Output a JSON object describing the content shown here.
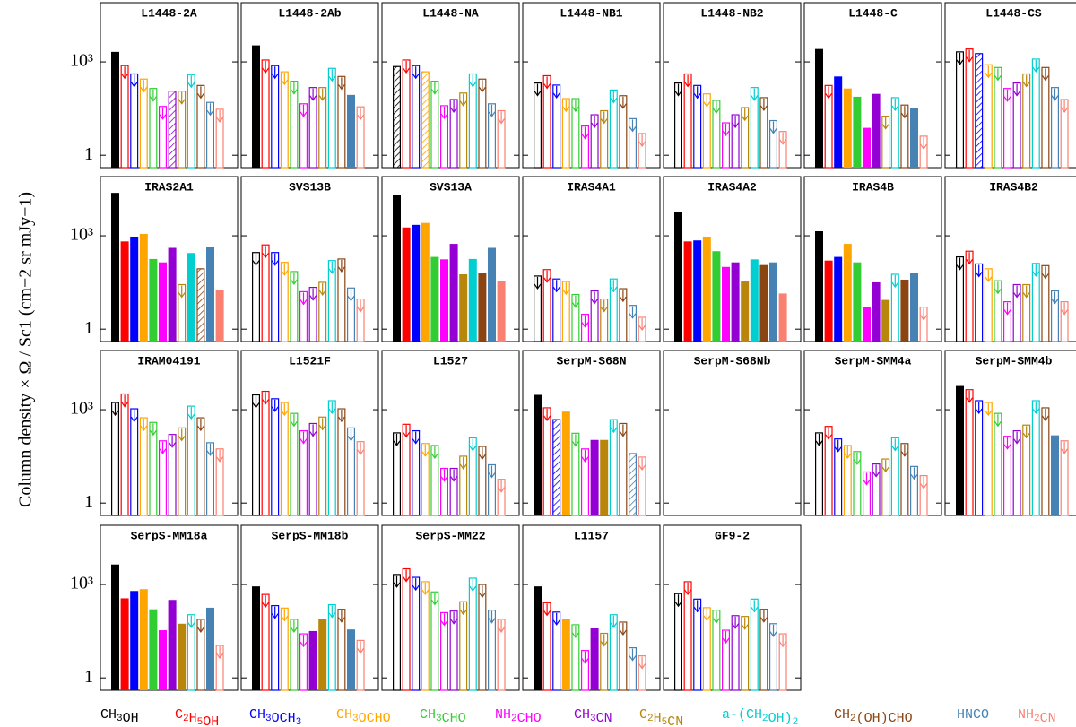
{
  "chart_data": {
    "type": "bar_grid",
    "ylabel": "Column density × Ω / Sc1 (cm−2 sr mJy−1)",
    "log_scale": true,
    "ylim": [
      0.4,
      80000
    ],
    "yticks": [
      1,
      {
        "value": 1000,
        "label": "10³"
      }
    ],
    "categories": [
      "CH3OH",
      "C2H5OH",
      "CH3OCH3",
      "CH3OCHO",
      "CH3CHO",
      "NH2CHO",
      "CH3CN",
      "C2H5CN",
      "a-(CH2OH)2",
      "CH2(OH)CHO",
      "HNCO",
      "NH2CN"
    ],
    "colors": [
      "#000000",
      "#ff0000",
      "#0000ff",
      "#ffa500",
      "#32cd32",
      "#ff00ff",
      "#9400d3",
      "#b8860b",
      "#00ced1",
      "#8b4513",
      "#4682b4",
      "#fa8072"
    ],
    "panels": [
      {
        "title": "L1448-2A",
        "values": [
          2100,
          760,
          410,
          280,
          140,
          37,
          115,
          115,
          390,
          175,
          50,
          30
        ],
        "styles": [
          "filled",
          "limit",
          "limit",
          "limit",
          "limit",
          "limit",
          "hatched",
          "limit",
          "limit",
          "limit",
          "limit",
          "limit"
        ]
      },
      {
        "title": "L1448-2Ab",
        "values": [
          3400,
          1150,
          760,
          480,
          240,
          45,
          150,
          150,
          620,
          340,
          87,
          36
        ],
        "styles": [
          "filled",
          "limit",
          "limit",
          "limit",
          "limit",
          "limit",
          "limit",
          "limit",
          "limit",
          "limit",
          "filled",
          "limit"
        ]
      },
      {
        "title": "L1448-NA",
        "values": [
          710,
          1150,
          760,
          480,
          240,
          39,
          62,
          100,
          410,
          280,
          45,
          27
        ],
        "styles": [
          "hatched",
          "limit",
          "limit",
          "hatched",
          "limit",
          "limit",
          "limit",
          "limit",
          "limit",
          "limit",
          "limit",
          "limit"
        ]
      },
      {
        "title": "L1448-NB1",
        "values": [
          210,
          360,
          180,
          66,
          66,
          8.7,
          20,
          27,
          125,
          82,
          15,
          5
        ],
        "styles": [
          "limit",
          "limit",
          "limit",
          "limit",
          "limit",
          "limit",
          "limit",
          "limit",
          "limit",
          "limit",
          "limit",
          "limit"
        ]
      },
      {
        "title": "L1448-NB2",
        "values": [
          210,
          410,
          175,
          94,
          58,
          11,
          20,
          34,
          150,
          71,
          13,
          5.8
        ],
        "styles": [
          "limit",
          "limit",
          "limit",
          "limit",
          "limit",
          "limit",
          "limit",
          "limit",
          "limit",
          "limit",
          "limit",
          "limit"
        ]
      },
      {
        "title": "L1448-C",
        "values": [
          2600,
          175,
          340,
          140,
          76,
          7.6,
          94,
          18,
          71,
          41,
          34,
          4.1
        ],
        "styles": [
          "filled",
          "limit",
          "filled",
          "filled",
          "filled",
          "filled",
          "filled",
          "limit",
          "limit",
          "limit",
          "filled",
          "limit"
        ]
      },
      {
        "title": "L1448-CS",
        "values": [
          2100,
          2600,
          1850,
          810,
          660,
          140,
          210,
          410,
          1230,
          660,
          150,
          62
        ],
        "styles": [
          "limit",
          "limit",
          "hatched",
          "limit",
          "limit",
          "limit",
          "limit",
          "limit",
          "limit",
          "limit",
          "limit",
          "limit"
        ]
      },
      {
        "title": "IRAS2A1",
        "values": [
          24000,
          660,
          940,
          1150,
          180,
          140,
          410,
          27,
          280,
          87,
          440,
          18
        ],
        "styles": [
          "filled",
          "filled",
          "filled",
          "filled",
          "filled",
          "filled",
          "filled",
          "limit",
          "filled",
          "hatched",
          "filled",
          "filled"
        ]
      },
      {
        "title": "SVS13B",
        "values": [
          290,
          510,
          290,
          140,
          71,
          16,
          22,
          32,
          160,
          180,
          21,
          9.3
        ],
        "styles": [
          "limit",
          "limit",
          "limit",
          "limit",
          "limit",
          "limit",
          "limit",
          "limit",
          "limit",
          "limit",
          "limit",
          "limit"
        ]
      },
      {
        "title": "SVS13A",
        "values": [
          21000,
          1850,
          2250,
          2600,
          210,
          175,
          550,
          58,
          180,
          62,
          410,
          36
        ],
        "styles": [
          "filled",
          "filled",
          "filled",
          "filled",
          "filled",
          "filled",
          "filled",
          "filled",
          "filled",
          "filled",
          "filled",
          "filled"
        ]
      },
      {
        "title": "IRAS4A1",
        "values": [
          51,
          82,
          41,
          34,
          13,
          3,
          17,
          9.3,
          41,
          20,
          5.8,
          2.4
        ],
        "styles": [
          "limit",
          "limit",
          "limit",
          "limit",
          "limit",
          "limit",
          "limit",
          "limit",
          "limit",
          "limit",
          "limit",
          "limit"
        ]
      },
      {
        "title": "IRAS4A2",
        "values": [
          5800,
          660,
          710,
          940,
          320,
          100,
          140,
          34,
          175,
          115,
          140,
          14
        ],
        "styles": [
          "filled",
          "filled",
          "filled",
          "filled",
          "filled",
          "filled",
          "filled",
          "filled",
          "filled",
          "filled",
          "filled",
          "filled"
        ]
      },
      {
        "title": "IRAS4B",
        "values": [
          1400,
          160,
          210,
          550,
          140,
          5.1,
          32,
          8.7,
          58,
          39,
          66,
          5.1
        ],
        "styles": [
          "filled",
          "filled",
          "filled",
          "filled",
          "filled",
          "filled",
          "filled",
          "filled",
          "limit",
          "filled",
          "filled",
          "limit"
        ]
      },
      {
        "title": "IRAS4B2",
        "values": [
          210,
          320,
          125,
          87,
          36,
          7.6,
          27,
          27,
          130,
          110,
          17,
          7.6
        ],
        "styles": [
          "limit",
          "limit",
          "limit",
          "limit",
          "limit",
          "limit",
          "limit",
          "limit",
          "limit",
          "limit",
          "limit",
          "limit"
        ]
      },
      {
        "title": "IRAM04191",
        "values": [
          1700,
          3200,
          1070,
          550,
          390,
          100,
          160,
          260,
          1300,
          550,
          87,
          55
        ],
        "styles": [
          "limit",
          "limit",
          "limit",
          "limit",
          "limit",
          "limit",
          "limit",
          "limit",
          "limit",
          "limit",
          "limit",
          "limit"
        ]
      },
      {
        "title": "L1521F",
        "values": [
          3000,
          3900,
          2250,
          1700,
          760,
          210,
          360,
          580,
          1950,
          1070,
          260,
          94
        ],
        "styles": [
          "limit",
          "limit",
          "limit",
          "limit",
          "limit",
          "limit",
          "limit",
          "limit",
          "limit",
          "limit",
          "limit",
          "limit"
        ]
      },
      {
        "title": "L1527",
        "values": [
          180,
          340,
          210,
          82,
          71,
          13,
          13,
          32,
          125,
          66,
          17,
          5.8
        ],
        "styles": [
          "limit",
          "limit",
          "limit",
          "limit",
          "limit",
          "limit",
          "limit",
          "limit",
          "limit",
          "limit",
          "limit",
          "limit"
        ]
      },
      {
        "title": "SerpM-S68N",
        "values": [
          3000,
          1150,
          480,
          870,
          175,
          55,
          107,
          107,
          480,
          360,
          39,
          30
        ],
        "styles": [
          "filled",
          "limit",
          "hatched",
          "filled",
          "limit",
          "limit",
          "filled",
          "filled",
          "limit",
          "limit",
          "hatched",
          "limit"
        ]
      },
      {
        "title": "SerpM-S68Nb",
        "values": [
          null,
          null,
          null,
          null,
          null,
          null,
          null,
          null,
          null,
          null,
          null,
          null
        ],
        "styles": [
          null,
          null,
          null,
          null,
          null,
          null,
          null,
          null,
          null,
          null,
          null,
          null
        ]
      },
      {
        "title": "SerpM-SMM4a",
        "values": [
          180,
          290,
          115,
          71,
          45,
          10,
          18,
          26,
          125,
          82,
          15,
          7.6
        ],
        "styles": [
          "limit",
          "limit",
          "limit",
          "limit",
          "limit",
          "limit",
          "limit",
          "limit",
          "limit",
          "limit",
          "limit",
          "limit"
        ]
      },
      {
        "title": "SerpM-SMM4b",
        "values": [
          5800,
          4400,
          1950,
          1700,
          760,
          140,
          210,
          320,
          1950,
          1150,
          150,
          100
        ],
        "styles": [
          "filled",
          "limit",
          "limit",
          "limit",
          "limit",
          "limit",
          "limit",
          "limit",
          "limit",
          "limit",
          "filled",
          "limit"
        ]
      },
      {
        "title": "SerpS-MM18a",
        "values": [
          4400,
          360,
          620,
          710,
          160,
          34,
          320,
          55,
          107,
          76,
          180,
          11
        ],
        "styles": [
          "filled",
          "filled",
          "filled",
          "filled",
          "filled",
          "filled",
          "filled",
          "filled",
          "limit",
          "limit",
          "filled",
          "limit"
        ]
      },
      {
        "title": "SerpS-MM18b",
        "values": [
          870,
          480,
          210,
          175,
          76,
          26,
          32,
          76,
          225,
          160,
          36,
          16
        ],
        "styles": [
          "filled",
          "limit",
          "limit",
          "limit",
          "limit",
          "limit",
          "filled",
          "filled",
          "limit",
          "limit",
          "filled",
          "limit"
        ]
      },
      {
        "title": "SerpS-MM22",
        "values": [
          2100,
          3200,
          1700,
          1230,
          580,
          125,
          140,
          280,
          1600,
          1000,
          150,
          76
        ],
        "styles": [
          "limit",
          "limit",
          "limit",
          "limit",
          "limit",
          "limit",
          "limit",
          "limit",
          "limit",
          "limit",
          "limit",
          "limit"
        ]
      },
      {
        "title": "L1157",
        "values": [
          870,
          260,
          130,
          76,
          51,
          7.6,
          39,
          27,
          107,
          62,
          9.3,
          5.1
        ],
        "styles": [
          "filled",
          "limit",
          "limit",
          "filled",
          "limit",
          "limit",
          "filled",
          "limit",
          "limit",
          "limit",
          "limit",
          "limit"
        ]
      },
      {
        "title": "GF9-2",
        "values": [
          510,
          1230,
          340,
          180,
          150,
          34,
          100,
          94,
          340,
          160,
          55,
          26
        ],
        "styles": [
          "limit",
          "limit",
          "limit",
          "limit",
          "limit",
          "limit",
          "limit",
          "limit",
          "limit",
          "limit",
          "limit",
          "limit"
        ]
      }
    ]
  }
}
